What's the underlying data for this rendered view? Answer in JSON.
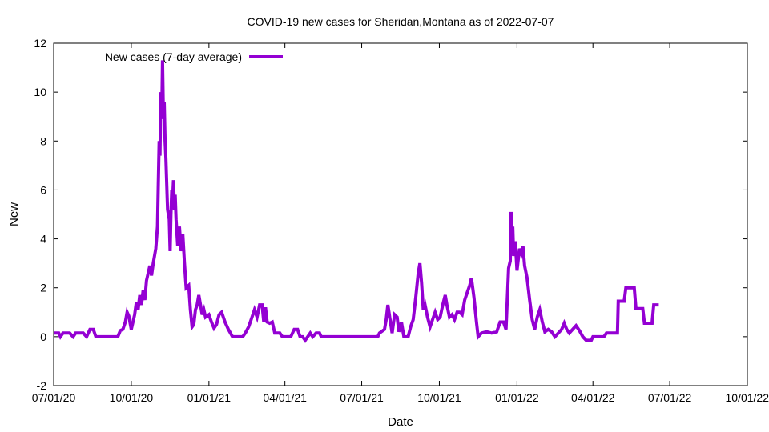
{
  "chart_data": {
    "type": "line",
    "title": "COVID-19 new cases for Sheridan,Montana as of 2022-07-07",
    "xlabel": "Date",
    "ylabel": "New",
    "ylim": [
      -2,
      12
    ],
    "xlim": [
      "2020-07-01",
      "2022-10-01"
    ],
    "grid": false,
    "legend_position": "top-left",
    "y_ticks": [
      -2,
      0,
      2,
      4,
      6,
      8,
      10,
      12
    ],
    "x_ticks": [
      {
        "date": "2020-07-01",
        "label": "07/01/20"
      },
      {
        "date": "2020-10-01",
        "label": "10/01/20"
      },
      {
        "date": "2021-01-01",
        "label": "01/01/21"
      },
      {
        "date": "2021-04-01",
        "label": "04/01/21"
      },
      {
        "date": "2021-07-01",
        "label": "07/01/21"
      },
      {
        "date": "2021-10-01",
        "label": "10/01/21"
      },
      {
        "date": "2022-01-01",
        "label": "01/01/22"
      },
      {
        "date": "2022-04-01",
        "label": "04/01/22"
      },
      {
        "date": "2022-07-01",
        "label": "07/01/22"
      },
      {
        "date": "2022-10-01",
        "label": "10/01/22"
      }
    ],
    "series": [
      {
        "name": "New cases (7-day average)",
        "color": "#9400d3",
        "points": [
          [
            "2020-07-01",
            0.15
          ],
          [
            "2020-07-07",
            0.15
          ],
          [
            "2020-07-09",
            0.0
          ],
          [
            "2020-07-12",
            0.15
          ],
          [
            "2020-07-20",
            0.15
          ],
          [
            "2020-07-24",
            0.0
          ],
          [
            "2020-07-27",
            0.15
          ],
          [
            "2020-08-05",
            0.15
          ],
          [
            "2020-08-09",
            0.0
          ],
          [
            "2020-08-13",
            0.3
          ],
          [
            "2020-08-17",
            0.3
          ],
          [
            "2020-08-20",
            0.0
          ],
          [
            "2020-09-15",
            0.0
          ],
          [
            "2020-09-18",
            0.25
          ],
          [
            "2020-09-21",
            0.3
          ],
          [
            "2020-09-24",
            0.6
          ],
          [
            "2020-09-26",
            1.0
          ],
          [
            "2020-09-28",
            0.85
          ],
          [
            "2020-10-01",
            0.3
          ],
          [
            "2020-10-03",
            0.6
          ],
          [
            "2020-10-05",
            0.9
          ],
          [
            "2020-10-07",
            1.4
          ],
          [
            "2020-10-09",
            1.1
          ],
          [
            "2020-10-11",
            1.7
          ],
          [
            "2020-10-13",
            1.3
          ],
          [
            "2020-10-15",
            1.9
          ],
          [
            "2020-10-17",
            1.5
          ],
          [
            "2020-10-19",
            2.3
          ],
          [
            "2020-10-21",
            2.6
          ],
          [
            "2020-10-23",
            2.9
          ],
          [
            "2020-10-25",
            2.5
          ],
          [
            "2020-10-27",
            3.0
          ],
          [
            "2020-10-30",
            3.6
          ],
          [
            "2020-11-01",
            4.5
          ],
          [
            "2020-11-02",
            6.2
          ],
          [
            "2020-11-03",
            8.0
          ],
          [
            "2020-11-04",
            7.4
          ],
          [
            "2020-11-05",
            10.0
          ],
          [
            "2020-11-06",
            8.9
          ],
          [
            "2020-11-07",
            11.3
          ],
          [
            "2020-11-08",
            9.0
          ],
          [
            "2020-11-09",
            9.6
          ],
          [
            "2020-11-10",
            8.0
          ],
          [
            "2020-11-11",
            7.3
          ],
          [
            "2020-11-13",
            5.2
          ],
          [
            "2020-11-15",
            4.8
          ],
          [
            "2020-11-16",
            3.5
          ],
          [
            "2020-11-17",
            5.0
          ],
          [
            "2020-11-18",
            6.0
          ],
          [
            "2020-11-19",
            5.6
          ],
          [
            "2020-11-20",
            6.4
          ],
          [
            "2020-11-21",
            5.2
          ],
          [
            "2020-11-22",
            5.8
          ],
          [
            "2020-11-23",
            4.8
          ],
          [
            "2020-11-25",
            3.7
          ],
          [
            "2020-11-27",
            4.5
          ],
          [
            "2020-11-29",
            3.5
          ],
          [
            "2020-12-01",
            4.2
          ],
          [
            "2020-12-03",
            3.0
          ],
          [
            "2020-12-05",
            2.0
          ],
          [
            "2020-12-08",
            2.1
          ],
          [
            "2020-12-10",
            1.1
          ],
          [
            "2020-12-12",
            0.4
          ],
          [
            "2020-12-14",
            0.5
          ],
          [
            "2020-12-16",
            1.1
          ],
          [
            "2020-12-18",
            1.3
          ],
          [
            "2020-12-20",
            1.7
          ],
          [
            "2020-12-22",
            1.3
          ],
          [
            "2020-12-24",
            0.9
          ],
          [
            "2020-12-26",
            1.1
          ],
          [
            "2020-12-28",
            0.8
          ],
          [
            "2021-01-01",
            0.9
          ],
          [
            "2021-01-04",
            0.6
          ],
          [
            "2021-01-07",
            0.35
          ],
          [
            "2021-01-10",
            0.5
          ],
          [
            "2021-01-13",
            0.9
          ],
          [
            "2021-01-16",
            1.0
          ],
          [
            "2021-01-20",
            0.6
          ],
          [
            "2021-01-24",
            0.3
          ],
          [
            "2021-01-29",
            0.0
          ],
          [
            "2021-02-10",
            0.0
          ],
          [
            "2021-02-13",
            0.15
          ],
          [
            "2021-02-17",
            0.4
          ],
          [
            "2021-02-21",
            0.8
          ],
          [
            "2021-02-24",
            1.1
          ],
          [
            "2021-02-27",
            0.8
          ],
          [
            "2021-03-02",
            1.3
          ],
          [
            "2021-03-05",
            1.3
          ],
          [
            "2021-03-07",
            0.6
          ],
          [
            "2021-03-09",
            1.2
          ],
          [
            "2021-03-11",
            0.6
          ],
          [
            "2021-03-14",
            0.55
          ],
          [
            "2021-03-17",
            0.6
          ],
          [
            "2021-03-20",
            0.15
          ],
          [
            "2021-03-26",
            0.15
          ],
          [
            "2021-03-29",
            0.0
          ],
          [
            "2021-04-08",
            0.0
          ],
          [
            "2021-04-12",
            0.3
          ],
          [
            "2021-04-16",
            0.3
          ],
          [
            "2021-04-19",
            0.0
          ],
          [
            "2021-04-22",
            0.0
          ],
          [
            "2021-04-25",
            -0.15
          ],
          [
            "2021-04-28",
            0.0
          ],
          [
            "2021-05-01",
            0.15
          ],
          [
            "2021-05-04",
            0.0
          ],
          [
            "2021-05-08",
            0.15
          ],
          [
            "2021-05-12",
            0.15
          ],
          [
            "2021-05-14",
            0.0
          ],
          [
            "2021-07-20",
            0.0
          ],
          [
            "2021-07-22",
            0.15
          ],
          [
            "2021-07-28",
            0.3
          ],
          [
            "2021-07-30",
            0.7
          ],
          [
            "2021-08-01",
            1.3
          ],
          [
            "2021-08-04",
            0.6
          ],
          [
            "2021-08-06",
            0.15
          ],
          [
            "2021-08-09",
            0.9
          ],
          [
            "2021-08-12",
            0.8
          ],
          [
            "2021-08-14",
            0.2
          ],
          [
            "2021-08-17",
            0.6
          ],
          [
            "2021-08-20",
            0.0
          ],
          [
            "2021-08-25",
            0.0
          ],
          [
            "2021-08-28",
            0.4
          ],
          [
            "2021-08-31",
            0.7
          ],
          [
            "2021-09-03",
            1.6
          ],
          [
            "2021-09-06",
            2.6
          ],
          [
            "2021-09-08",
            3.0
          ],
          [
            "2021-09-10",
            2.2
          ],
          [
            "2021-09-12",
            1.1
          ],
          [
            "2021-09-14",
            1.3
          ],
          [
            "2021-09-17",
            0.8
          ],
          [
            "2021-09-20",
            0.4
          ],
          [
            "2021-09-23",
            0.7
          ],
          [
            "2021-09-26",
            1.0
          ],
          [
            "2021-09-29",
            0.7
          ],
          [
            "2021-10-02",
            0.8
          ],
          [
            "2021-10-05",
            1.3
          ],
          [
            "2021-10-08",
            1.7
          ],
          [
            "2021-10-10",
            1.3
          ],
          [
            "2021-10-13",
            0.8
          ],
          [
            "2021-10-16",
            0.9
          ],
          [
            "2021-10-19",
            0.7
          ],
          [
            "2021-10-22",
            1.0
          ],
          [
            "2021-10-25",
            1.0
          ],
          [
            "2021-10-28",
            0.9
          ],
          [
            "2021-10-31",
            1.5
          ],
          [
            "2021-11-03",
            1.8
          ],
          [
            "2021-11-06",
            2.1
          ],
          [
            "2021-11-08",
            2.4
          ],
          [
            "2021-11-11",
            1.6
          ],
          [
            "2021-11-14",
            0.6
          ],
          [
            "2021-11-16",
            0.0
          ],
          [
            "2021-11-20",
            0.15
          ],
          [
            "2021-11-26",
            0.2
          ],
          [
            "2021-12-02",
            0.15
          ],
          [
            "2021-12-08",
            0.2
          ],
          [
            "2021-12-12",
            0.6
          ],
          [
            "2021-12-16",
            0.6
          ],
          [
            "2021-12-19",
            0.3
          ],
          [
            "2021-12-22",
            2.8
          ],
          [
            "2021-12-24",
            3.1
          ],
          [
            "2021-12-25",
            5.1
          ],
          [
            "2021-12-26",
            3.4
          ],
          [
            "2021-12-27",
            4.5
          ],
          [
            "2021-12-28",
            3.3
          ],
          [
            "2021-12-30",
            3.9
          ],
          [
            "2022-01-01",
            2.7
          ],
          [
            "2022-01-04",
            3.6
          ],
          [
            "2022-01-06",
            3.4
          ],
          [
            "2022-01-08",
            3.7
          ],
          [
            "2022-01-10",
            2.9
          ],
          [
            "2022-01-13",
            2.4
          ],
          [
            "2022-01-16",
            1.5
          ],
          [
            "2022-01-19",
            0.7
          ],
          [
            "2022-01-22",
            0.3
          ],
          [
            "2022-01-25",
            0.8
          ],
          [
            "2022-01-28",
            1.1
          ],
          [
            "2022-01-31",
            0.6
          ],
          [
            "2022-02-03",
            0.2
          ],
          [
            "2022-02-07",
            0.3
          ],
          [
            "2022-02-11",
            0.2
          ],
          [
            "2022-02-15",
            0.0
          ],
          [
            "2022-02-19",
            0.15
          ],
          [
            "2022-02-23",
            0.3
          ],
          [
            "2022-02-26",
            0.55
          ],
          [
            "2022-03-01",
            0.3
          ],
          [
            "2022-03-04",
            0.15
          ],
          [
            "2022-03-08",
            0.3
          ],
          [
            "2022-03-12",
            0.45
          ],
          [
            "2022-03-16",
            0.25
          ],
          [
            "2022-03-20",
            0.0
          ],
          [
            "2022-03-24",
            -0.15
          ],
          [
            "2022-03-30",
            -0.15
          ],
          [
            "2022-04-01",
            0.0
          ],
          [
            "2022-04-14",
            0.0
          ],
          [
            "2022-04-17",
            0.15
          ],
          [
            "2022-04-30",
            0.15
          ],
          [
            "2022-05-01",
            1.45
          ],
          [
            "2022-05-08",
            1.45
          ],
          [
            "2022-05-10",
            2.0
          ],
          [
            "2022-05-20",
            2.0
          ],
          [
            "2022-05-22",
            1.15
          ],
          [
            "2022-05-30",
            1.15
          ],
          [
            "2022-06-01",
            0.55
          ],
          [
            "2022-06-10",
            0.55
          ],
          [
            "2022-06-12",
            1.3
          ],
          [
            "2022-06-18",
            1.3
          ]
        ]
      }
    ]
  }
}
